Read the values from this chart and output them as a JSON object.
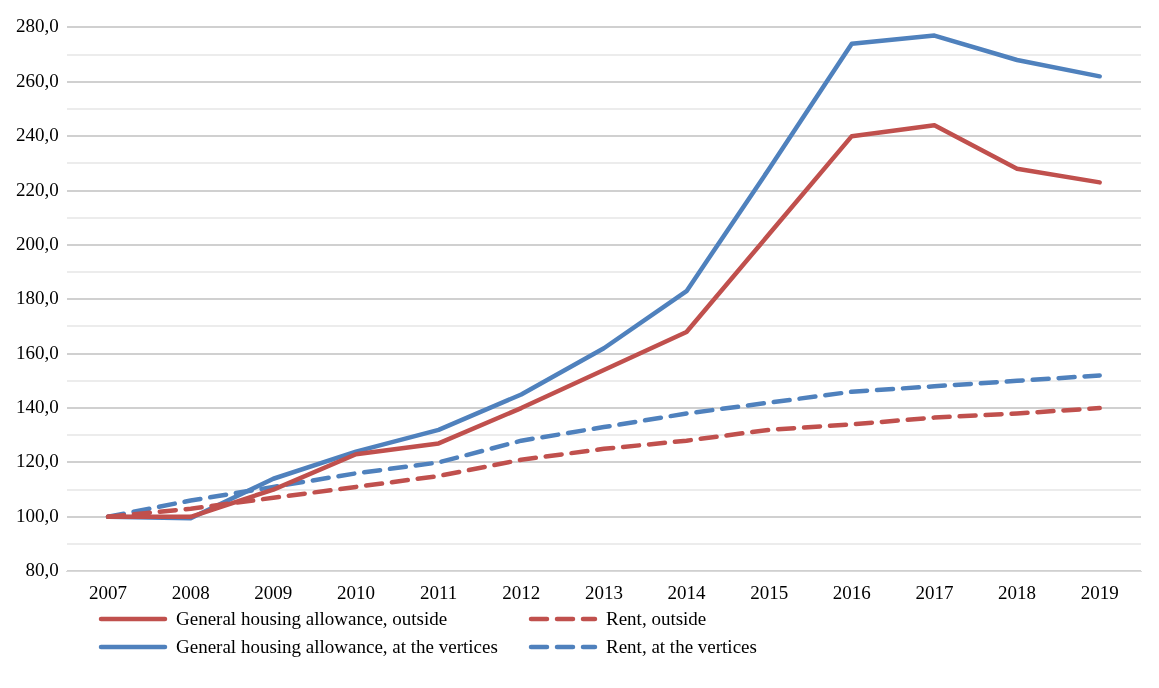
{
  "chart_data": {
    "type": "line",
    "categories": [
      "2007",
      "2008",
      "2009",
      "2010",
      "2011",
      "2012",
      "2013",
      "2014",
      "2015",
      "2016",
      "2017",
      "2018",
      "2019"
    ],
    "series": [
      {
        "name": "General housing allowance, outside",
        "color": "#c0504d",
        "line_style": "solid",
        "values": [
          100,
          100,
          110,
          123,
          127,
          140,
          154,
          168,
          204,
          240,
          244,
          228,
          223
        ]
      },
      {
        "name": "Rent, outside",
        "color": "#c0504d",
        "line_style": "dashed",
        "values": [
          100,
          103,
          107,
          111,
          115,
          121,
          125,
          128,
          132,
          134,
          136.5,
          138,
          140
        ]
      },
      {
        "name": "General housing allowance, at the vertices",
        "color": "#4f81bd",
        "line_style": "solid",
        "values": [
          100,
          99.5,
          114,
          124,
          132,
          145,
          162,
          183,
          228,
          274,
          277,
          268,
          262
        ]
      },
      {
        "name": "Rent, at the vertices",
        "color": "#4f81bd",
        "line_style": "dashed",
        "values": [
          100,
          106,
          111,
          116,
          120,
          128,
          133,
          138,
          142,
          146,
          148,
          150,
          152
        ]
      }
    ],
    "ylim": [
      80,
      280
    ],
    "yticks": [
      {
        "value": 80,
        "label": "80,0"
      },
      {
        "value": 90,
        "label": null
      },
      {
        "value": 100,
        "label": "100,0"
      },
      {
        "value": 110,
        "label": null
      },
      {
        "value": 120,
        "label": "120,0"
      },
      {
        "value": 130,
        "label": null
      },
      {
        "value": 140,
        "label": "140,0"
      },
      {
        "value": 150,
        "label": null
      },
      {
        "value": 160,
        "label": "160,0"
      },
      {
        "value": 170,
        "label": null
      },
      {
        "value": 180,
        "label": "180,0"
      },
      {
        "value": 190,
        "label": null
      },
      {
        "value": 200,
        "label": "200,0"
      },
      {
        "value": 210,
        "label": null
      },
      {
        "value": 220,
        "label": "220,0"
      },
      {
        "value": 230,
        "label": null
      },
      {
        "value": 240,
        "label": "240,0"
      },
      {
        "value": 250,
        "label": null
      },
      {
        "value": 260,
        "label": "260,0"
      },
      {
        "value": 270,
        "label": null
      },
      {
        "value": 280,
        "label": "280,0"
      }
    ],
    "grid": "y",
    "legend": "bottom",
    "marker": "none"
  }
}
